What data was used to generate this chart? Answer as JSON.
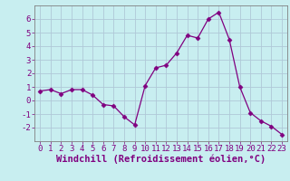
{
  "x": [
    0,
    1,
    2,
    3,
    4,
    5,
    6,
    7,
    8,
    9,
    10,
    11,
    12,
    13,
    14,
    15,
    16,
    17,
    18,
    19,
    20,
    21,
    22,
    23
  ],
  "y": [
    0.7,
    0.8,
    0.5,
    0.8,
    0.8,
    0.4,
    -0.3,
    -0.4,
    -1.2,
    -1.8,
    1.1,
    2.4,
    2.6,
    3.5,
    4.8,
    4.6,
    6.0,
    6.5,
    4.5,
    1.0,
    -0.9,
    -1.5,
    -1.9,
    -2.5
  ],
  "line_color": "#800080",
  "marker": "D",
  "marker_size": 2.5,
  "bg_color": "#c8eef0",
  "grid_color": "#b0c8d8",
  "xlabel": "Windchill (Refroidissement éolien,°C)",
  "ylim": [
    -3,
    7
  ],
  "xlim": [
    -0.5,
    23.5
  ],
  "yticks": [
    -2,
    -1,
    0,
    1,
    2,
    3,
    4,
    5,
    6
  ],
  "xticks": [
    0,
    1,
    2,
    3,
    4,
    5,
    6,
    7,
    8,
    9,
    10,
    11,
    12,
    13,
    14,
    15,
    16,
    17,
    18,
    19,
    20,
    21,
    22,
    23
  ],
  "tick_label_fontsize": 6.5,
  "xlabel_fontsize": 7.5,
  "label_color": "#800080",
  "spine_color": "#808080"
}
